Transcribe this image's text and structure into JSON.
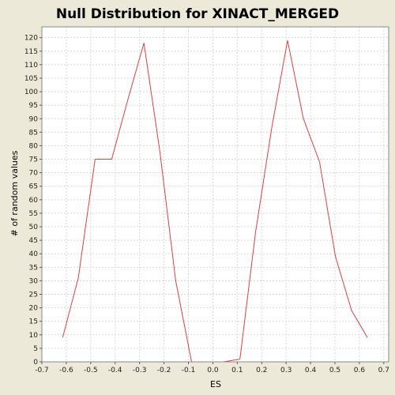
{
  "chart_data": {
    "type": "line",
    "title": "Null Distribution for XINACT_MERGED",
    "xlabel": "ES",
    "ylabel": "# of random values",
    "xlim": [
      -0.7,
      0.72
    ],
    "ylim": [
      0,
      124
    ],
    "x_ticks": [
      -0.7,
      -0.6,
      -0.5,
      -0.4,
      -0.3,
      -0.2,
      -0.1,
      0.0,
      0.1,
      0.2,
      0.3,
      0.4,
      0.5,
      0.6,
      0.7
    ],
    "x_tick_labels": [
      "-0.7",
      "-0.6",
      "-0.5",
      "-0.4",
      "-0.3",
      "-0.2",
      "-0.1",
      "0.0",
      "0.1",
      "0.2",
      "0.3",
      "0.4",
      "0.5",
      "0.6",
      "0.7"
    ],
    "y_ticks": [
      0,
      5,
      10,
      15,
      20,
      25,
      30,
      35,
      40,
      45,
      50,
      55,
      60,
      65,
      70,
      75,
      80,
      85,
      90,
      95,
      100,
      105,
      110,
      115,
      120
    ],
    "grid": true,
    "colors": {
      "line": "#e04040",
      "plot_bg": "#ffffff",
      "grid": "#d8d8d8",
      "frame": "#888888"
    },
    "series": [
      {
        "x": [
          -0.615,
          -0.551,
          -0.482,
          -0.414,
          -0.348,
          -0.282,
          -0.217,
          -0.152,
          -0.087,
          -0.022,
          0.044,
          0.111,
          0.175,
          0.242,
          0.306,
          0.371,
          0.437,
          0.502,
          0.568,
          0.633
        ],
        "values": [
          9,
          31,
          75,
          75,
          97,
          118,
          78,
          30,
          0,
          0,
          0,
          1,
          48,
          87,
          119,
          90,
          74,
          39,
          19,
          9
        ]
      }
    ]
  }
}
